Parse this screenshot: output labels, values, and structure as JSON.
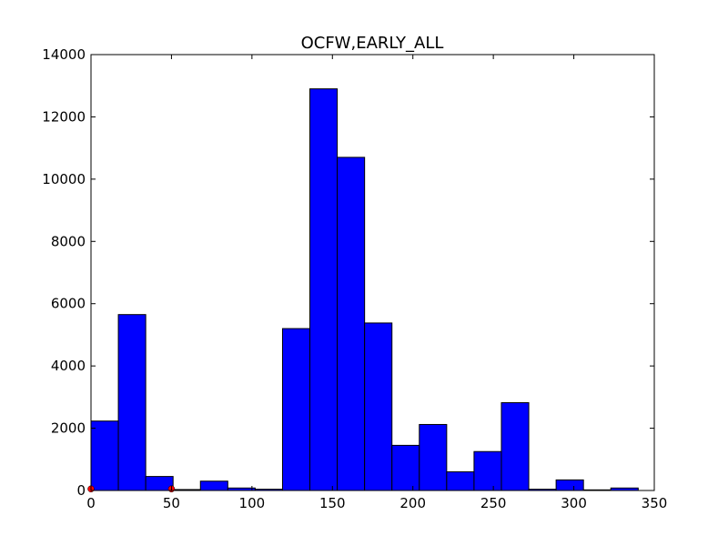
{
  "chart_data": {
    "type": "bar",
    "title": "OCFW,EARLY_ALL",
    "xlabel": "",
    "ylabel": "",
    "xlim": [
      0,
      350
    ],
    "ylim": [
      0,
      14000
    ],
    "xticks": [
      0,
      50,
      100,
      150,
      200,
      250,
      300,
      350
    ],
    "yticks": [
      0,
      2000,
      4000,
      6000,
      8000,
      10000,
      12000,
      14000
    ],
    "bin_width": 17,
    "bins": [
      {
        "x0": 0,
        "value": 2230
      },
      {
        "x0": 17,
        "value": 5650
      },
      {
        "x0": 34,
        "value": 450
      },
      {
        "x0": 51,
        "value": 30
      },
      {
        "x0": 68,
        "value": 300
      },
      {
        "x0": 85,
        "value": 80
      },
      {
        "x0": 102,
        "value": 40
      },
      {
        "x0": 119,
        "value": 5200
      },
      {
        "x0": 136,
        "value": 12900
      },
      {
        "x0": 153,
        "value": 10700
      },
      {
        "x0": 170,
        "value": 5380
      },
      {
        "x0": 187,
        "value": 1450
      },
      {
        "x0": 204,
        "value": 2120
      },
      {
        "x0": 221,
        "value": 600
      },
      {
        "x0": 238,
        "value": 1250
      },
      {
        "x0": 255,
        "value": 2820
      },
      {
        "x0": 272,
        "value": 40
      },
      {
        "x0": 289,
        "value": 340
      },
      {
        "x0": 306,
        "value": 20
      },
      {
        "x0": 323,
        "value": 80
      }
    ],
    "markers": [
      {
        "x": 0,
        "y": 80
      },
      {
        "x": 50,
        "y": 80
      }
    ],
    "bar_color": "#0000ff",
    "marker_color": "#ff0000",
    "grid": false,
    "legend": "none"
  }
}
